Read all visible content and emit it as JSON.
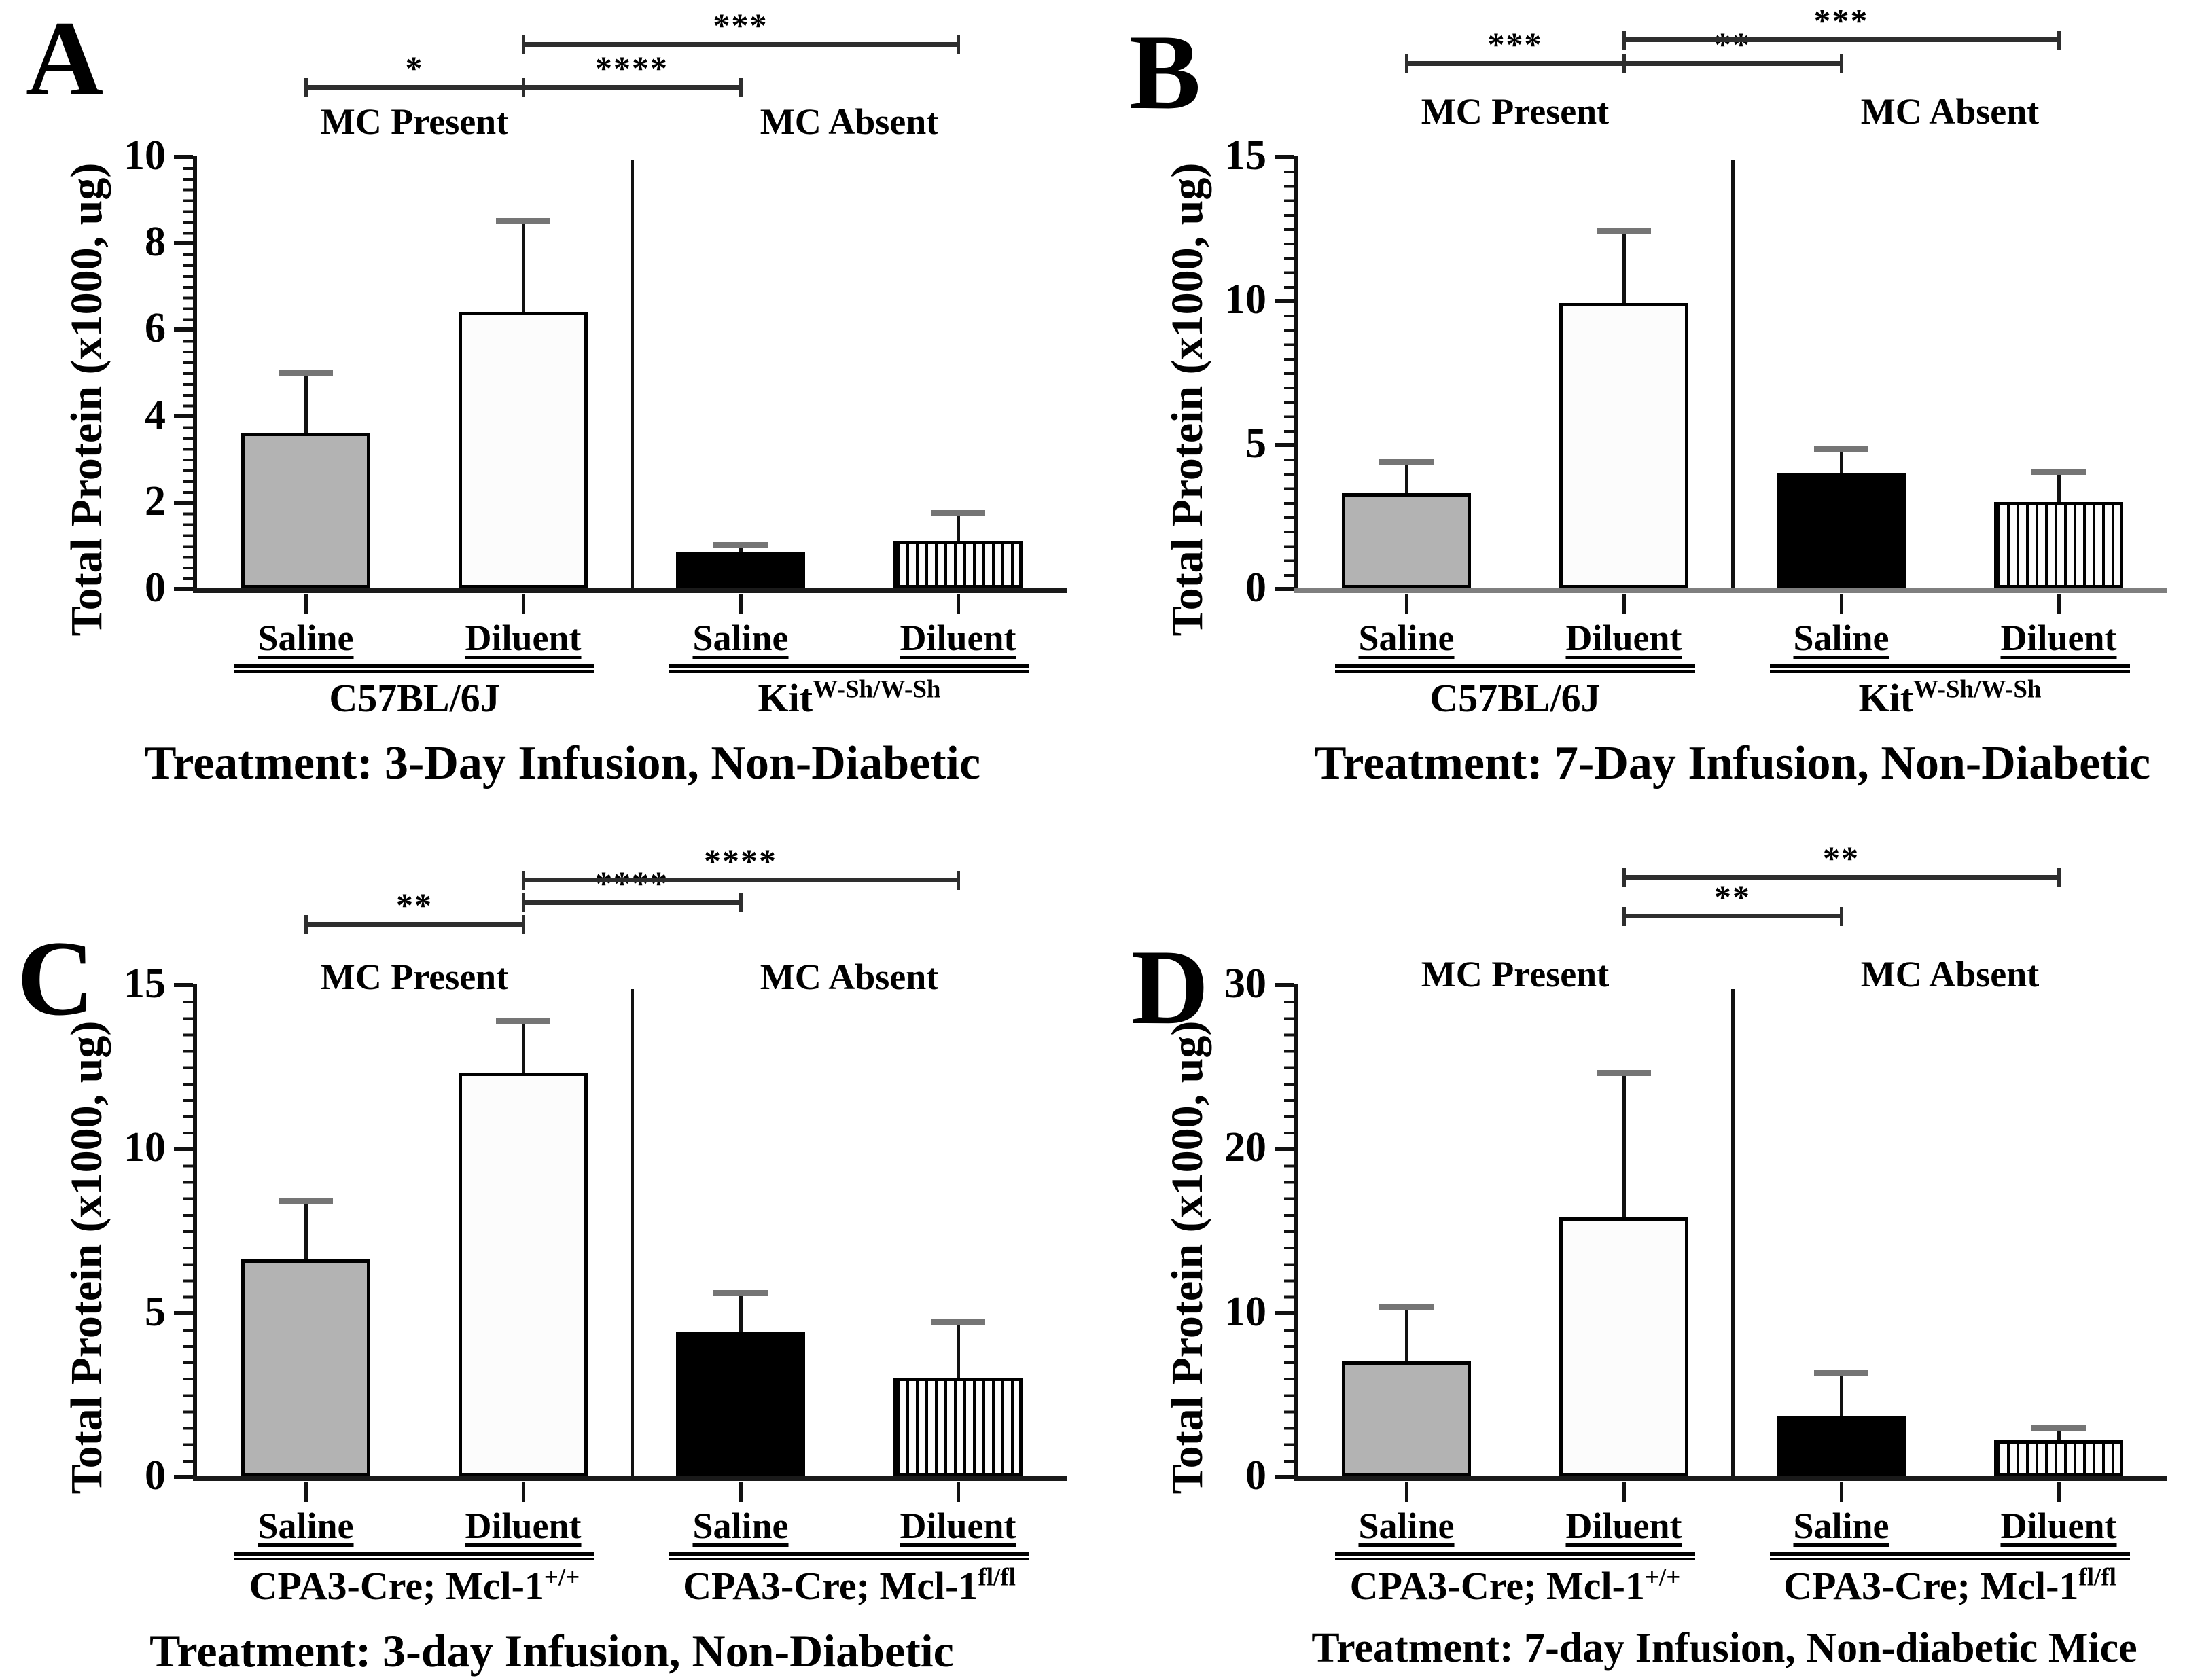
{
  "figure": {
    "kind": "four-panel bar figure",
    "description_visible_panels": [
      "A",
      "B",
      "C",
      "D"
    ]
  },
  "colors": {
    "background": "#ffffff",
    "bar_gray_fill": "#b3b3b3",
    "bar_white_fill": "#fcfcfc",
    "bar_black_fill": "#000000",
    "stripe_color": "#000000",
    "error_cap": "#757575",
    "bracket": "#2e2e2e",
    "axis_black": "#1a1a1a",
    "axis_gray_panel_b": "#7f7f7f"
  },
  "chart_data": [
    {
      "type": "bar",
      "panel_letter": "A",
      "title": "Treatment: 3-Day Infusion, Non-Diabetic",
      "ylabel": "Total Protein (x1000, ug)",
      "ylim": [
        0,
        10
      ],
      "yticks": [
        0,
        2,
        4,
        6,
        8,
        10
      ],
      "minor_tick_step": 0.25,
      "group_headers": [
        "MC Present",
        "MC Absent"
      ],
      "categories": [
        "Saline",
        "Diluent",
        "Saline",
        "Diluent"
      ],
      "values": [
        3.6,
        6.4,
        0.85,
        1.1
      ],
      "error_tops": [
        5.0,
        8.5,
        1.0,
        1.75
      ],
      "bar_styles": [
        "gray",
        "white",
        "black",
        "striped"
      ],
      "genotypes": [
        {
          "base": "C57BL/6J",
          "sup": ""
        },
        {
          "base": "Kit",
          "sup": "W-Sh/W-Sh"
        }
      ],
      "significance": [
        {
          "from": 0,
          "to": 1,
          "label": "*",
          "row": 0
        },
        {
          "from": 1,
          "to": 2,
          "label": "****",
          "row": 0
        },
        {
          "from": 1,
          "to": 3,
          "label": "***",
          "row": 1
        }
      ],
      "axis_color": "#1a1a1a",
      "divider_between_groups": true,
      "legend": "none",
      "grid": "off"
    },
    {
      "type": "bar",
      "panel_letter": "B",
      "title": "Treatment: 7-Day Infusion, Non-Diabetic",
      "title_clipped_at_right_edge": true,
      "ylabel": "Total Protein (x1000, ug)",
      "ylim": [
        0,
        15
      ],
      "yticks": [
        0,
        5,
        10,
        15
      ],
      "minor_tick_step": 0.5,
      "group_headers": [
        "MC Present",
        "MC Absent"
      ],
      "categories": [
        "Saline",
        "Diluent",
        "Saline",
        "Diluent"
      ],
      "values": [
        3.3,
        9.9,
        4.0,
        3.0
      ],
      "error_tops": [
        4.4,
        12.4,
        4.85,
        4.05
      ],
      "bar_styles": [
        "gray",
        "white",
        "black",
        "striped"
      ],
      "genotypes": [
        {
          "base": "C57BL/6J",
          "sup": ""
        },
        {
          "base": "Kit",
          "sup": "W-Sh/W-Sh"
        }
      ],
      "significance": [
        {
          "from": 0,
          "to": 1,
          "label": "***",
          "row": 0
        },
        {
          "from": 1,
          "to": 2,
          "label": "**",
          "row": 0
        },
        {
          "from": 1,
          "to": 3,
          "label": "***",
          "row": 1
        }
      ],
      "axis_color": "#7f7f7f",
      "divider_between_groups": true,
      "legend": "none",
      "grid": "off"
    },
    {
      "type": "bar",
      "panel_letter": "C",
      "title": "Treatment: 3-day Infusion, Non-Diabetic",
      "ylabel": "Total Protein (x1000, ug)",
      "ylim": [
        0,
        15
      ],
      "yticks": [
        0,
        5,
        10,
        15
      ],
      "minor_tick_step": 0.5,
      "group_headers": [
        "MC Present",
        "MC Absent"
      ],
      "categories": [
        "Saline",
        "Diluent",
        "Saline",
        "Diluent"
      ],
      "values": [
        6.6,
        12.3,
        4.4,
        3.0
      ],
      "error_tops": [
        8.4,
        13.9,
        5.6,
        4.7
      ],
      "bar_styles": [
        "gray",
        "white",
        "black",
        "striped"
      ],
      "genotypes": [
        {
          "base": "CPA3-Cre; Mcl-1",
          "sup": "+/+"
        },
        {
          "base": "CPA3-Cre; Mcl-1",
          "sup": "fl/fl"
        }
      ],
      "significance": [
        {
          "from": 0,
          "to": 1,
          "label": "**",
          "row": 0
        },
        {
          "from": 1,
          "to": 2,
          "label": "****",
          "row": 1
        },
        {
          "from": 1,
          "to": 3,
          "label": "****",
          "row": 2
        }
      ],
      "axis_color": "#1a1a1a",
      "divider_between_groups": true,
      "legend": "none",
      "grid": "off"
    },
    {
      "type": "bar",
      "panel_letter": "D",
      "title": "Treatment: 7-day Infusion, Non-diabetic Mice",
      "ylabel": "Total Protein (x1000, ug)",
      "ylim": [
        0,
        30
      ],
      "yticks": [
        0,
        10,
        20,
        30
      ],
      "minor_tick_step": 1,
      "group_headers": [
        "MC Present",
        "MC Absent"
      ],
      "categories": [
        "Saline",
        "Diluent",
        "Saline",
        "Diluent"
      ],
      "values": [
        7.0,
        15.8,
        3.7,
        2.2
      ],
      "error_tops": [
        10.3,
        24.6,
        6.3,
        3.0
      ],
      "bar_styles": [
        "gray",
        "white",
        "black",
        "striped"
      ],
      "genotypes": [
        {
          "base": "CPA3-Cre; Mcl-1",
          "sup": "+/+"
        },
        {
          "base": "CPA3-Cre; Mcl-1",
          "sup": "fl/fl"
        }
      ],
      "significance": [
        {
          "from": 1,
          "to": 2,
          "label": "**",
          "row": 0
        },
        {
          "from": 1,
          "to": 3,
          "label": "**",
          "row": 1
        }
      ],
      "axis_color": "#1a1a1a",
      "divider_between_groups": true,
      "legend": "none",
      "grid": "off"
    }
  ]
}
